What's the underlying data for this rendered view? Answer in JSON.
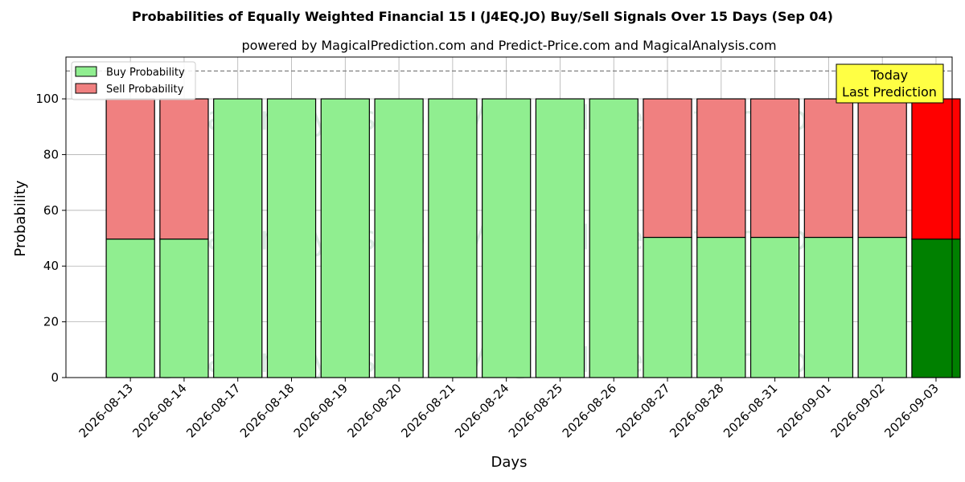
{
  "chart_data": {
    "type": "bar",
    "stacked": true,
    "title": "Probabilities of Equally Weighted Financial 15 I (J4EQ.JO) Buy/Sell Signals Over 15 Days (Sep 04)",
    "subtitle": "powered by MagicalPrediction.com and Predict-Price.com and MagicalAnalysis.com",
    "xlabel": "Days",
    "ylabel": "Probability",
    "ylim": [
      0,
      115
    ],
    "yticks": [
      0,
      20,
      40,
      60,
      80,
      100
    ],
    "reference_line": 110,
    "grid": true,
    "legend_position": "top-left",
    "categories": [
      "2026-08-13",
      "2026-08-14",
      "2026-08-17",
      "2026-08-18",
      "2026-08-19",
      "2026-08-20",
      "2026-08-21",
      "2026-08-24",
      "2026-08-25",
      "2026-08-26",
      "2026-08-27",
      "2026-08-28",
      "2026-08-31",
      "2026-09-01",
      "2026-09-02",
      "2026-09-03"
    ],
    "series": [
      {
        "name": "Buy Probability",
        "color": "#90ee90",
        "values": [
          49.7,
          49.7,
          100,
          100,
          100,
          100,
          100,
          100,
          100,
          100,
          50.3,
          50.3,
          50.3,
          50.3,
          50.3,
          49.7
        ]
      },
      {
        "name": "Sell Probability",
        "color": "#f08080",
        "values": [
          50.3,
          50.3,
          0,
          0,
          0,
          0,
          0,
          0,
          0,
          0,
          49.7,
          49.7,
          49.7,
          49.7,
          49.7,
          50.3
        ]
      }
    ],
    "highlight": {
      "index": 15,
      "buy_color": "#008000",
      "sell_color": "#ff0000"
    },
    "annotation": {
      "lines": [
        "Today",
        "Last Prediction"
      ],
      "bg_color": "#ffff44"
    },
    "watermarks": [
      "MagicalAnalysis.com",
      "MagicalPrediction.com"
    ]
  }
}
